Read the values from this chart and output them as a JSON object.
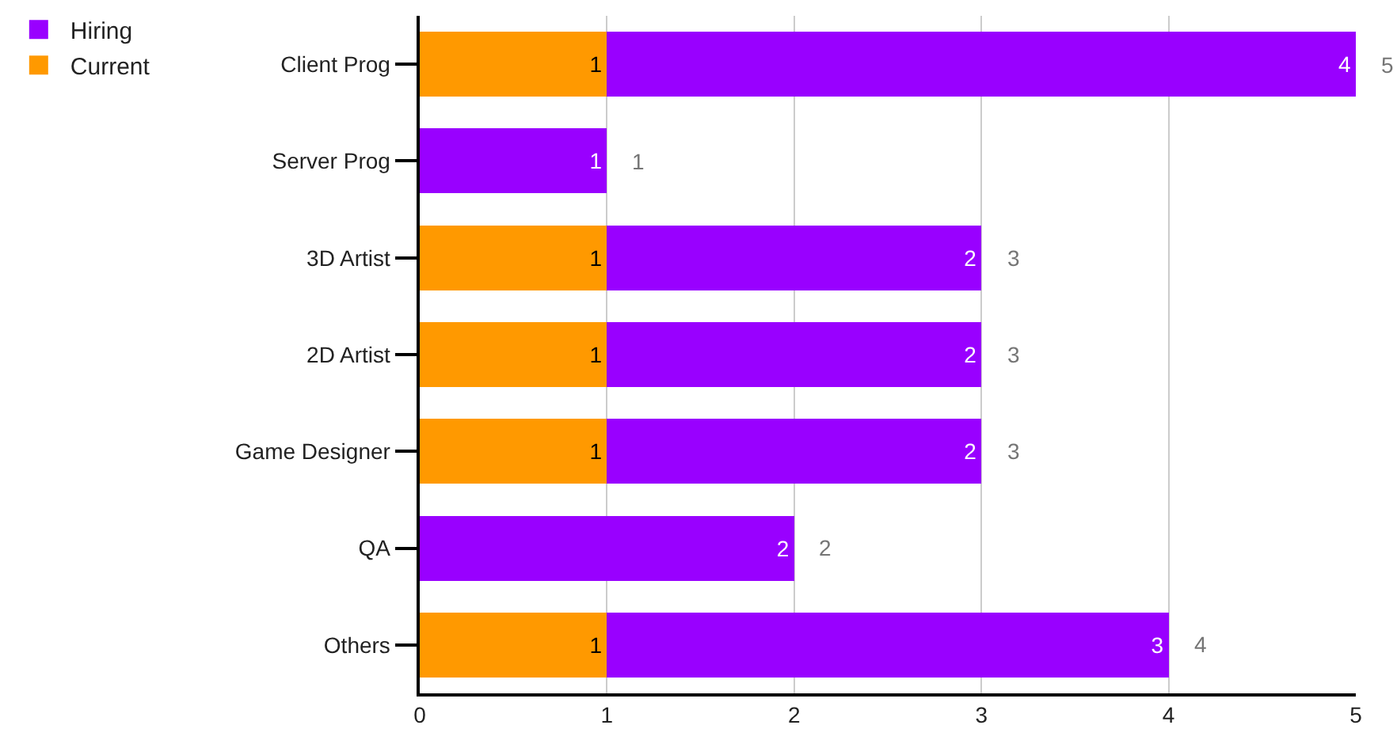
{
  "chart_data": {
    "type": "bar",
    "orientation": "horizontal",
    "stacked": true,
    "categories": [
      "Client Prog",
      "Server Prog",
      "3D Artist",
      "2D Artist",
      "Game Designer",
      "QA",
      "Others"
    ],
    "series": [
      {
        "name": "Current",
        "color": "#ff9900",
        "values": [
          1,
          null,
          1,
          1,
          1,
          null,
          1
        ]
      },
      {
        "name": "Hiring",
        "color": "#9900ff",
        "values": [
          4,
          1,
          2,
          2,
          2,
          2,
          3
        ]
      }
    ],
    "totals": [
      "5",
      "1",
      "3",
      "3",
      "3",
      "2",
      "4"
    ],
    "data_labels": true,
    "xlim": [
      0,
      5
    ],
    "xticks": [
      0,
      1,
      2,
      3,
      4,
      5
    ],
    "grid": "x",
    "legend": "top left"
  }
}
